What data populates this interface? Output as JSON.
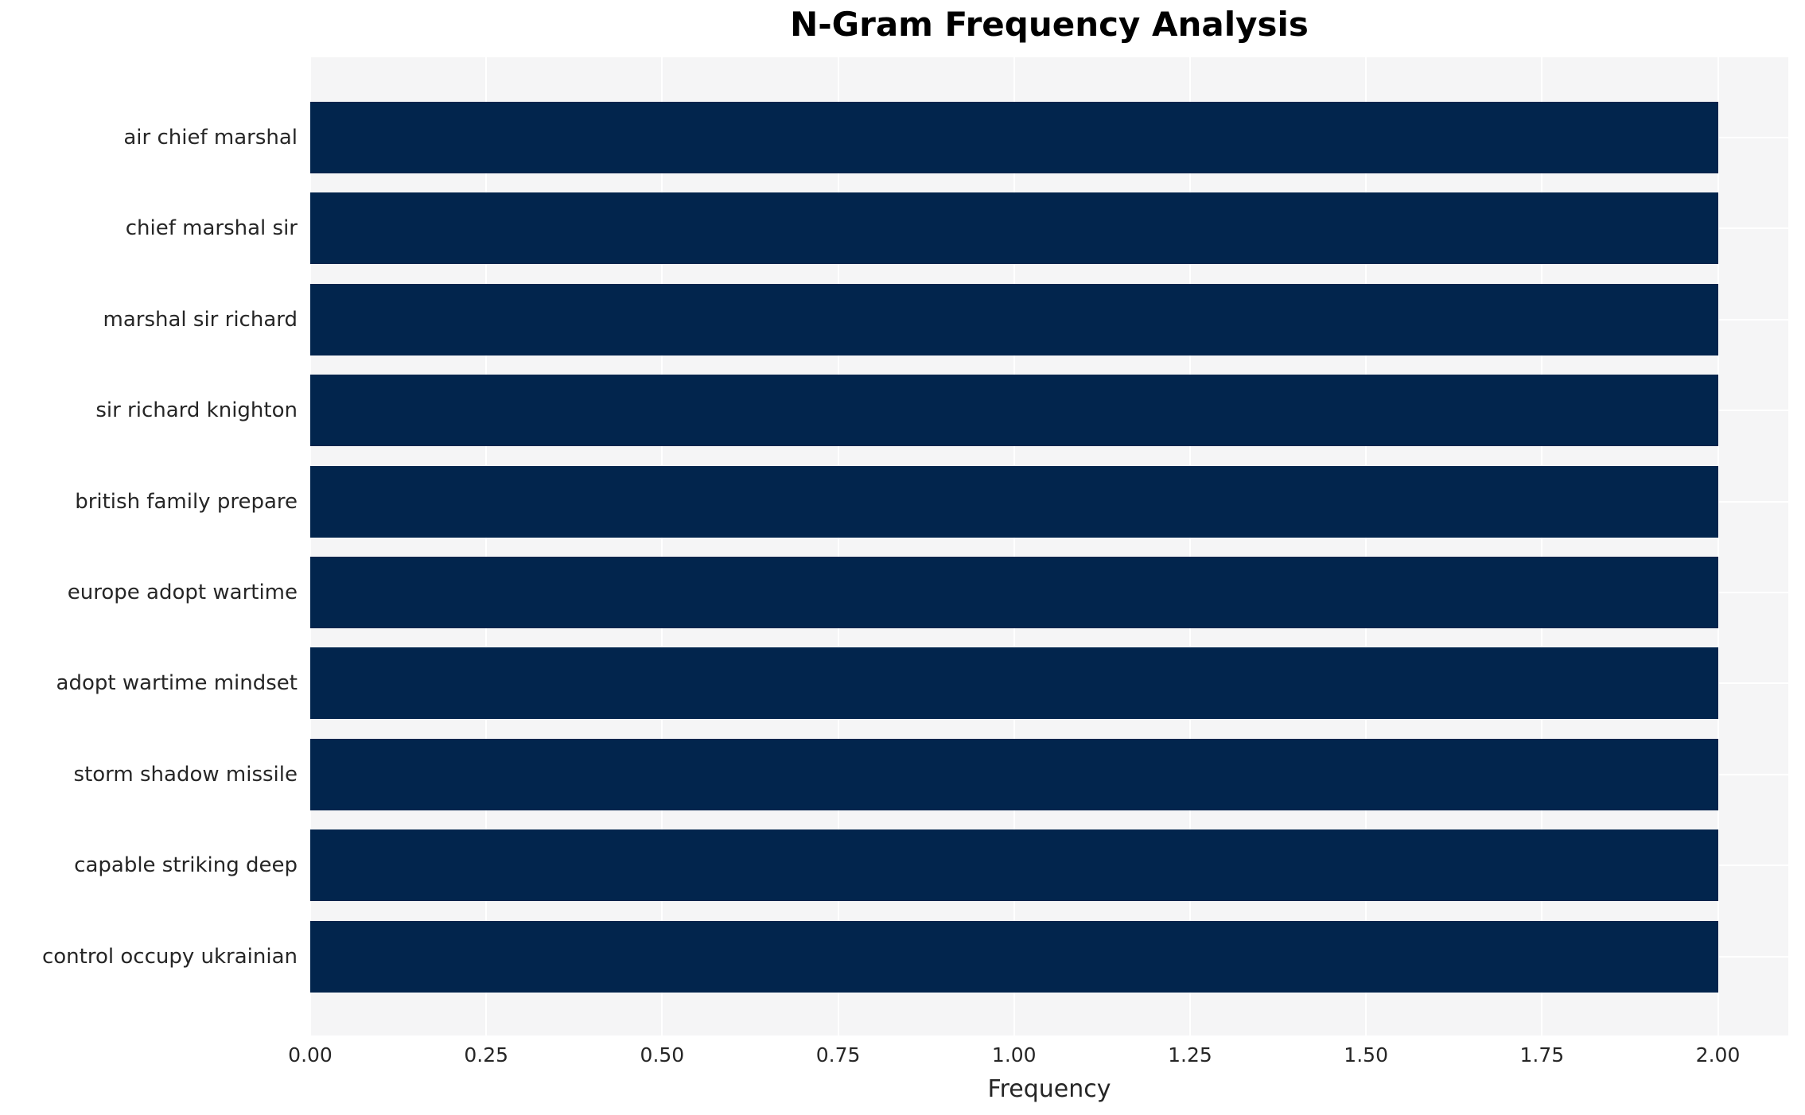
{
  "chart_data": {
    "type": "bar",
    "orientation": "horizontal",
    "title": "N-Gram Frequency Analysis",
    "xlabel": "Frequency",
    "ylabel": "",
    "categories": [
      "air chief marshal",
      "chief marshal sir",
      "marshal sir richard",
      "sir richard knighton",
      "british family prepare",
      "europe adopt wartime",
      "adopt wartime mindset",
      "storm shadow missile",
      "capable striking deep",
      "control occupy ukrainian"
    ],
    "values": [
      2,
      2,
      2,
      2,
      2,
      2,
      2,
      2,
      2,
      2
    ],
    "xlim": [
      0,
      2.1
    ],
    "xticks": [
      0,
      0.25,
      0.5,
      0.75,
      1.0,
      1.25,
      1.5,
      1.75,
      2.0
    ],
    "xtick_labels": [
      "0.00",
      "0.25",
      "0.50",
      "0.75",
      "1.00",
      "1.25",
      "1.50",
      "1.75",
      "2.00"
    ],
    "grid": true,
    "legend": false,
    "colors": {
      "bar": "#02254d",
      "plot_background": "#f5f5f6",
      "grid": "#ffffff",
      "text": "#262626",
      "title": "#000000"
    }
  }
}
